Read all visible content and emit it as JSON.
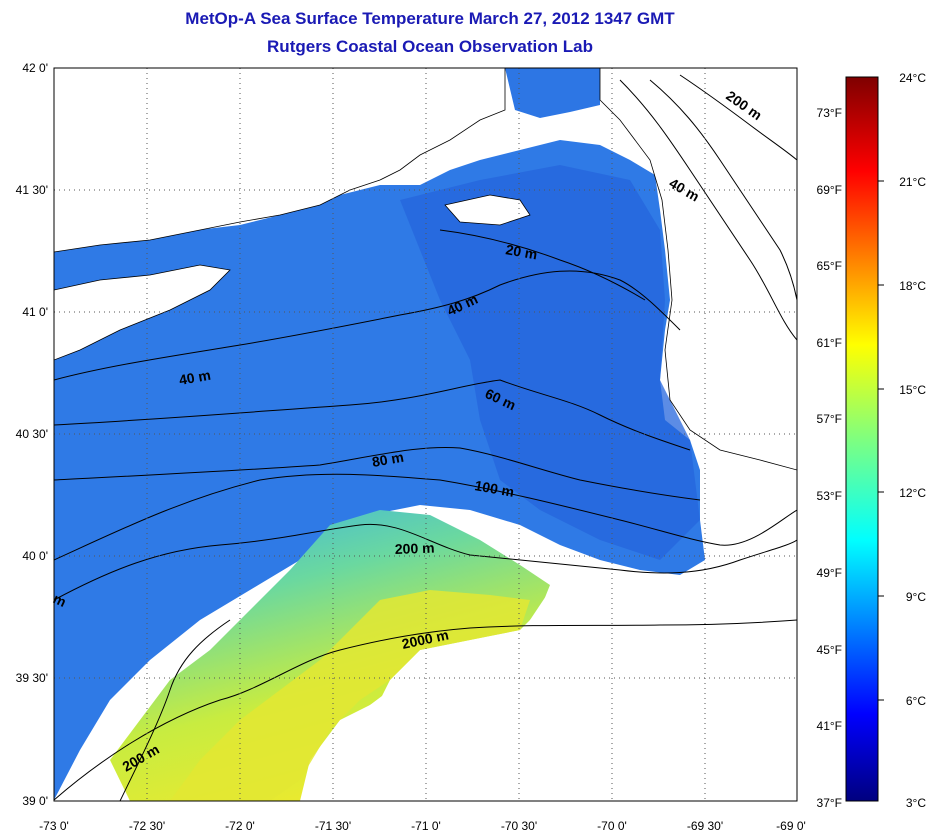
{
  "title_line1": "MetOp-A Sea Surface Temperature March 27, 2012 1347 GMT",
  "title_line2": "Rutgers Coastal Ocean Observation Lab",
  "lat_labels": [
    "42 0'",
    "41 30'",
    "41 0'",
    "40 30'",
    "40 0'",
    "39 30'",
    "39 0'"
  ],
  "lon_labels": [
    "-73 0'",
    "-72 30'",
    "-72 0'",
    "-71 30'",
    "-71 0'",
    "-70 30'",
    "-70 0'",
    "-69 30'",
    "-69 0'"
  ],
  "fahrenheit_labels": [
    "73°F",
    "69°F",
    "65°F",
    "61°F",
    "57°F",
    "53°F",
    "49°F",
    "45°F",
    "41°F",
    "37°F"
  ],
  "celsius_labels": [
    "24°C",
    "21°C",
    "18°C",
    "15°C",
    "12°C",
    "9°C",
    "6°C",
    "3°C"
  ],
  "contour_labels": [
    "200 m",
    "40 m",
    "20 m",
    "40 m",
    "40 m",
    "60 m",
    "80 m",
    "100 m",
    "200 m",
    "2000 m",
    "200 m",
    "m"
  ],
  "colors": {
    "title": "#1a1ab4",
    "land": "#ffffff",
    "sst_cold": "#2060e0",
    "sst_mid": "#3a90f0",
    "sst_warm": "#e8ea30"
  }
}
